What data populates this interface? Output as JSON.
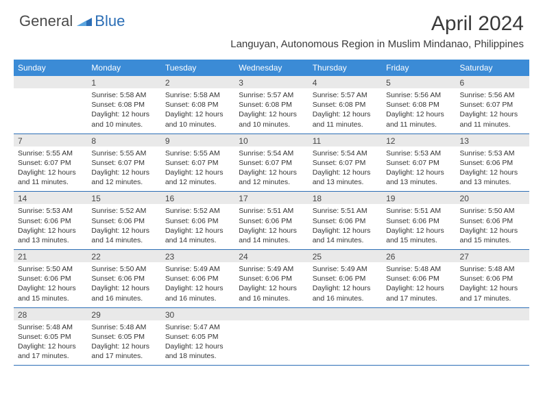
{
  "brand": {
    "part1": "General",
    "part2": "Blue"
  },
  "title": "April 2024",
  "location": "Languyan, Autonomous Region in Muslim Mindanao, Philippines",
  "colors": {
    "header_bg": "#3b8bd6",
    "header_text": "#ffffff",
    "daynum_bg": "#e9e9e9",
    "row_border": "#2a6db5",
    "text": "#333333",
    "brand_blue": "#2a6db5"
  },
  "typography": {
    "title_fontsize": 30,
    "location_fontsize": 15,
    "header_fontsize": 12,
    "cell_fontsize": 10.5
  },
  "weekdays": [
    "Sunday",
    "Monday",
    "Tuesday",
    "Wednesday",
    "Thursday",
    "Friday",
    "Saturday"
  ],
  "weeks": [
    [
      {
        "n": "",
        "sunrise": "",
        "sunset": "",
        "daylight": ""
      },
      {
        "n": "1",
        "sunrise": "Sunrise: 5:58 AM",
        "sunset": "Sunset: 6:08 PM",
        "daylight": "Daylight: 12 hours and 10 minutes."
      },
      {
        "n": "2",
        "sunrise": "Sunrise: 5:58 AM",
        "sunset": "Sunset: 6:08 PM",
        "daylight": "Daylight: 12 hours and 10 minutes."
      },
      {
        "n": "3",
        "sunrise": "Sunrise: 5:57 AM",
        "sunset": "Sunset: 6:08 PM",
        "daylight": "Daylight: 12 hours and 10 minutes."
      },
      {
        "n": "4",
        "sunrise": "Sunrise: 5:57 AM",
        "sunset": "Sunset: 6:08 PM",
        "daylight": "Daylight: 12 hours and 11 minutes."
      },
      {
        "n": "5",
        "sunrise": "Sunrise: 5:56 AM",
        "sunset": "Sunset: 6:08 PM",
        "daylight": "Daylight: 12 hours and 11 minutes."
      },
      {
        "n": "6",
        "sunrise": "Sunrise: 5:56 AM",
        "sunset": "Sunset: 6:07 PM",
        "daylight": "Daylight: 12 hours and 11 minutes."
      }
    ],
    [
      {
        "n": "7",
        "sunrise": "Sunrise: 5:55 AM",
        "sunset": "Sunset: 6:07 PM",
        "daylight": "Daylight: 12 hours and 11 minutes."
      },
      {
        "n": "8",
        "sunrise": "Sunrise: 5:55 AM",
        "sunset": "Sunset: 6:07 PM",
        "daylight": "Daylight: 12 hours and 12 minutes."
      },
      {
        "n": "9",
        "sunrise": "Sunrise: 5:55 AM",
        "sunset": "Sunset: 6:07 PM",
        "daylight": "Daylight: 12 hours and 12 minutes."
      },
      {
        "n": "10",
        "sunrise": "Sunrise: 5:54 AM",
        "sunset": "Sunset: 6:07 PM",
        "daylight": "Daylight: 12 hours and 12 minutes."
      },
      {
        "n": "11",
        "sunrise": "Sunrise: 5:54 AM",
        "sunset": "Sunset: 6:07 PM",
        "daylight": "Daylight: 12 hours and 13 minutes."
      },
      {
        "n": "12",
        "sunrise": "Sunrise: 5:53 AM",
        "sunset": "Sunset: 6:07 PM",
        "daylight": "Daylight: 12 hours and 13 minutes."
      },
      {
        "n": "13",
        "sunrise": "Sunrise: 5:53 AM",
        "sunset": "Sunset: 6:06 PM",
        "daylight": "Daylight: 12 hours and 13 minutes."
      }
    ],
    [
      {
        "n": "14",
        "sunrise": "Sunrise: 5:53 AM",
        "sunset": "Sunset: 6:06 PM",
        "daylight": "Daylight: 12 hours and 13 minutes."
      },
      {
        "n": "15",
        "sunrise": "Sunrise: 5:52 AM",
        "sunset": "Sunset: 6:06 PM",
        "daylight": "Daylight: 12 hours and 14 minutes."
      },
      {
        "n": "16",
        "sunrise": "Sunrise: 5:52 AM",
        "sunset": "Sunset: 6:06 PM",
        "daylight": "Daylight: 12 hours and 14 minutes."
      },
      {
        "n": "17",
        "sunrise": "Sunrise: 5:51 AM",
        "sunset": "Sunset: 6:06 PM",
        "daylight": "Daylight: 12 hours and 14 minutes."
      },
      {
        "n": "18",
        "sunrise": "Sunrise: 5:51 AM",
        "sunset": "Sunset: 6:06 PM",
        "daylight": "Daylight: 12 hours and 14 minutes."
      },
      {
        "n": "19",
        "sunrise": "Sunrise: 5:51 AM",
        "sunset": "Sunset: 6:06 PM",
        "daylight": "Daylight: 12 hours and 15 minutes."
      },
      {
        "n": "20",
        "sunrise": "Sunrise: 5:50 AM",
        "sunset": "Sunset: 6:06 PM",
        "daylight": "Daylight: 12 hours and 15 minutes."
      }
    ],
    [
      {
        "n": "21",
        "sunrise": "Sunrise: 5:50 AM",
        "sunset": "Sunset: 6:06 PM",
        "daylight": "Daylight: 12 hours and 15 minutes."
      },
      {
        "n": "22",
        "sunrise": "Sunrise: 5:50 AM",
        "sunset": "Sunset: 6:06 PM",
        "daylight": "Daylight: 12 hours and 16 minutes."
      },
      {
        "n": "23",
        "sunrise": "Sunrise: 5:49 AM",
        "sunset": "Sunset: 6:06 PM",
        "daylight": "Daylight: 12 hours and 16 minutes."
      },
      {
        "n": "24",
        "sunrise": "Sunrise: 5:49 AM",
        "sunset": "Sunset: 6:06 PM",
        "daylight": "Daylight: 12 hours and 16 minutes."
      },
      {
        "n": "25",
        "sunrise": "Sunrise: 5:49 AM",
        "sunset": "Sunset: 6:06 PM",
        "daylight": "Daylight: 12 hours and 16 minutes."
      },
      {
        "n": "26",
        "sunrise": "Sunrise: 5:48 AM",
        "sunset": "Sunset: 6:06 PM",
        "daylight": "Daylight: 12 hours and 17 minutes."
      },
      {
        "n": "27",
        "sunrise": "Sunrise: 5:48 AM",
        "sunset": "Sunset: 6:06 PM",
        "daylight": "Daylight: 12 hours and 17 minutes."
      }
    ],
    [
      {
        "n": "28",
        "sunrise": "Sunrise: 5:48 AM",
        "sunset": "Sunset: 6:05 PM",
        "daylight": "Daylight: 12 hours and 17 minutes."
      },
      {
        "n": "29",
        "sunrise": "Sunrise: 5:48 AM",
        "sunset": "Sunset: 6:05 PM",
        "daylight": "Daylight: 12 hours and 17 minutes."
      },
      {
        "n": "30",
        "sunrise": "Sunrise: 5:47 AM",
        "sunset": "Sunset: 6:05 PM",
        "daylight": "Daylight: 12 hours and 18 minutes."
      },
      {
        "n": "",
        "sunrise": "",
        "sunset": "",
        "daylight": ""
      },
      {
        "n": "",
        "sunrise": "",
        "sunset": "",
        "daylight": ""
      },
      {
        "n": "",
        "sunrise": "",
        "sunset": "",
        "daylight": ""
      },
      {
        "n": "",
        "sunrise": "",
        "sunset": "",
        "daylight": ""
      }
    ]
  ]
}
